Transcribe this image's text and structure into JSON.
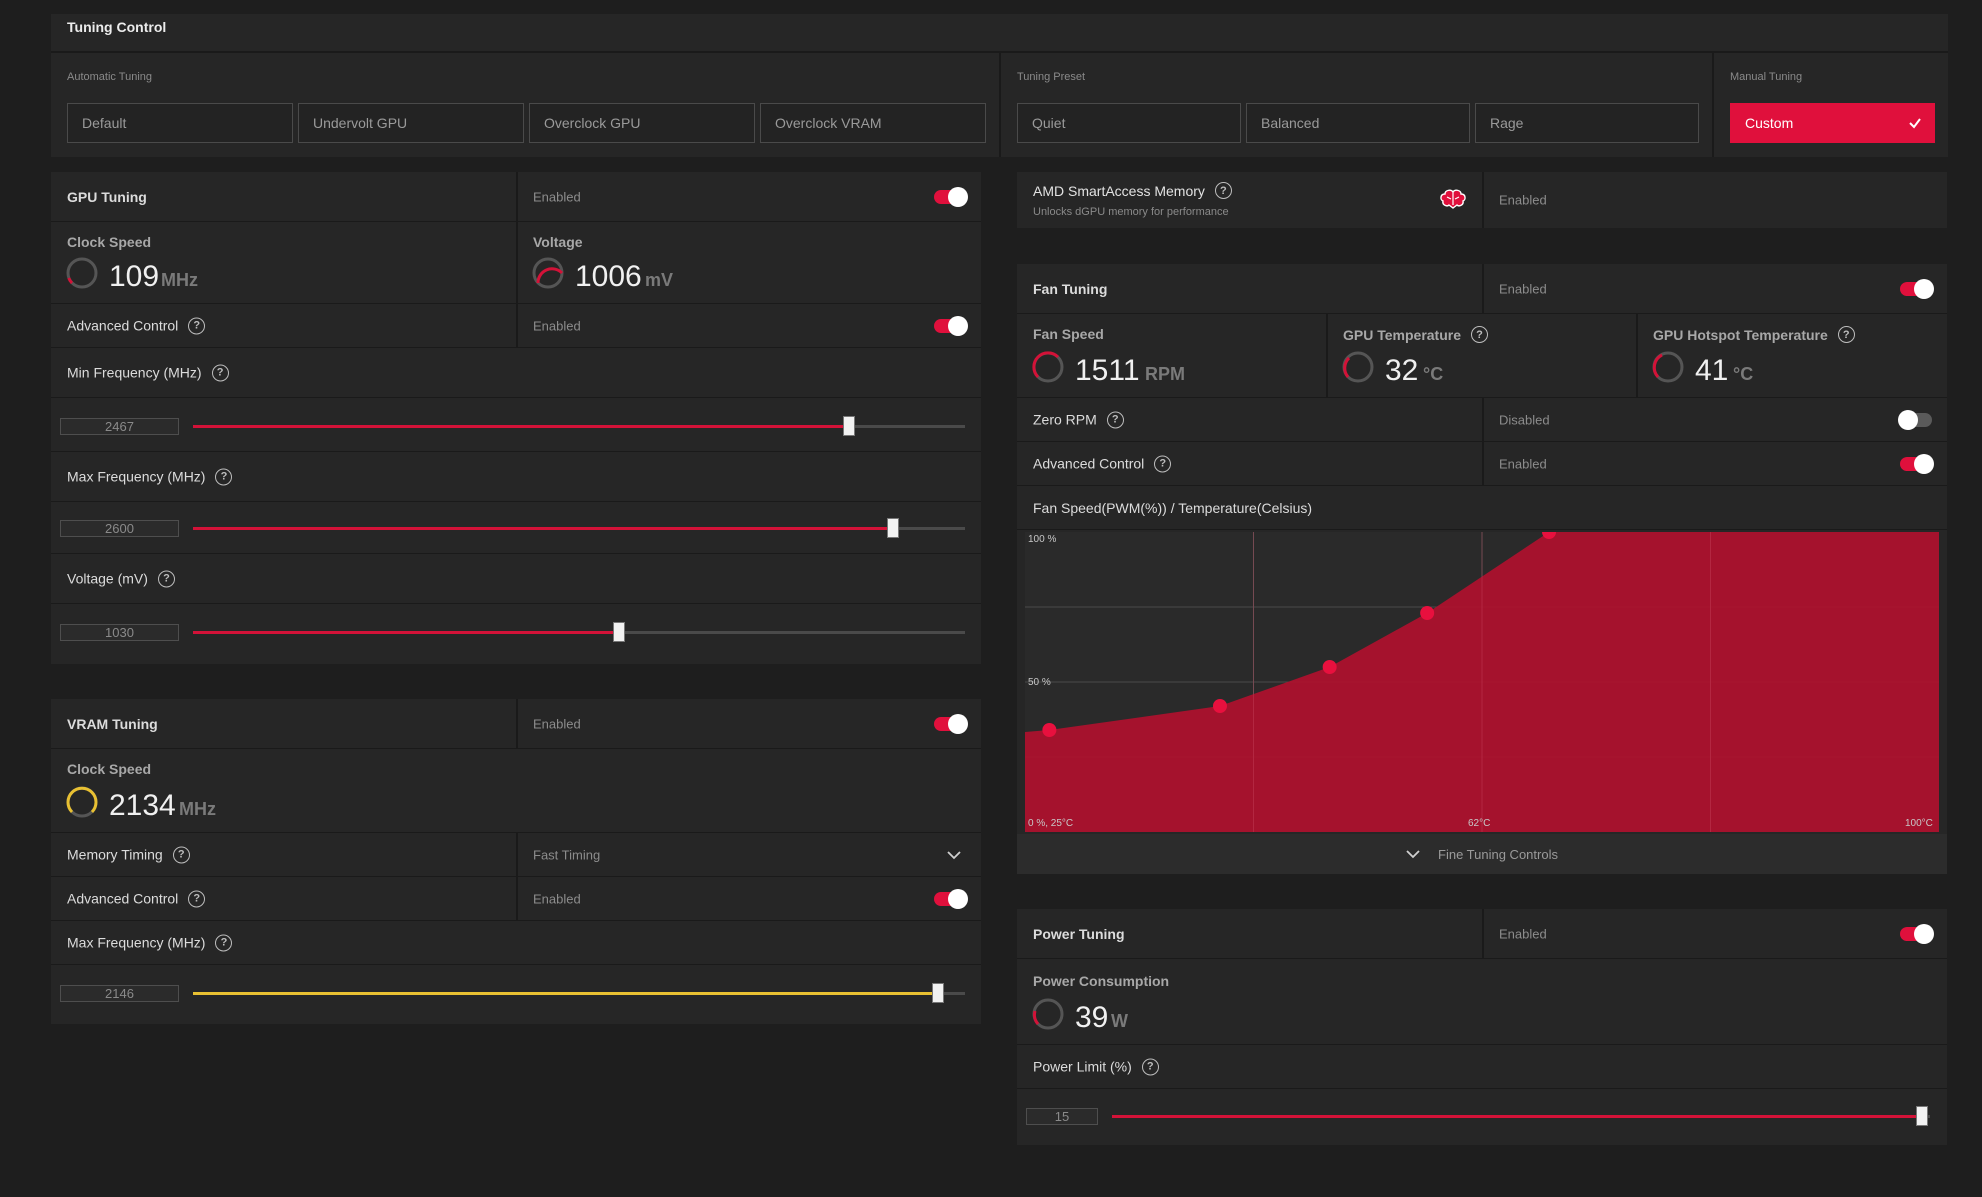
{
  "tuning_control": {
    "title": "Tuning Control",
    "automatic": {
      "label": "Automatic Tuning",
      "buttons": [
        "Default",
        "Undervolt GPU",
        "Overclock GPU",
        "Overclock VRAM"
      ]
    },
    "preset": {
      "label": "Tuning Preset",
      "buttons": [
        "Quiet",
        "Balanced",
        "Rage"
      ]
    },
    "manual": {
      "label": "Manual Tuning",
      "button": "Custom"
    }
  },
  "gpu_tuning": {
    "title": "GPU Tuning",
    "state": "Enabled",
    "enabled": true,
    "clock": {
      "label": "Clock Speed",
      "value": "109",
      "unit": "MHz"
    },
    "voltage": {
      "label": "Voltage",
      "value": "1006",
      "unit": "mV"
    },
    "advanced": {
      "label": "Advanced Control",
      "state": "Enabled",
      "enabled": true
    },
    "min_freq": {
      "label": "Min Frequency (MHz)",
      "value": "2467",
      "fraction": 0.85
    },
    "max_freq": {
      "label": "Max Frequency (MHz)",
      "value": "2600",
      "fraction": 0.907
    },
    "volt_slider": {
      "label": "Voltage (mV)",
      "value": "1030",
      "fraction": 0.552
    }
  },
  "vram_tuning": {
    "title": "VRAM Tuning",
    "state": "Enabled",
    "enabled": true,
    "clock": {
      "label": "Clock Speed",
      "value": "2134",
      "unit": "MHz"
    },
    "memory_timing": {
      "label": "Memory Timing",
      "value": "Fast Timing"
    },
    "advanced": {
      "label": "Advanced Control",
      "state": "Enabled",
      "enabled": true
    },
    "max_freq": {
      "label": "Max Frequency (MHz)",
      "value": "2146",
      "fraction": 0.965
    }
  },
  "smart_access": {
    "title": "AMD SmartAccess Memory",
    "subtitle": "Unlocks dGPU memory for performance",
    "state": "Enabled"
  },
  "fan_tuning": {
    "title": "Fan Tuning",
    "state": "Enabled",
    "enabled": true,
    "fan_speed": {
      "label": "Fan Speed",
      "value": "1511",
      "unit": "RPM"
    },
    "gpu_temp": {
      "label": "GPU Temperature",
      "value": "32",
      "unit": "°C"
    },
    "hotspot_temp": {
      "label": "GPU Hotspot Temperature",
      "value": "41",
      "unit": "°C"
    },
    "zero_rpm": {
      "label": "Zero RPM",
      "state": "Disabled",
      "enabled": false
    },
    "advanced": {
      "label": "Advanced Control",
      "state": "Enabled",
      "enabled": true
    },
    "curve_title": "Fan Speed(PWM(%)) / Temperature(Celsius)",
    "fine_tuning": "Fine Tuning Controls"
  },
  "power_tuning": {
    "title": "Power Tuning",
    "state": "Enabled",
    "enabled": true,
    "consumption": {
      "label": "Power Consumption",
      "value": "39",
      "unit": "W"
    },
    "limit": {
      "label": "Power Limit (%)",
      "value": "15",
      "fraction": 0.99
    }
  },
  "colors": {
    "accent": "#e0103c",
    "vram_accent": "#e8c032",
    "panel": "#262626",
    "background": "#1e1e1e"
  },
  "chart_data": {
    "type": "area",
    "title": "Fan Speed(PWM(%)) / Temperature(Celsius)",
    "xlim": [
      25,
      100
    ],
    "ylim": [
      0,
      100
    ],
    "x": [
      27,
      41,
      50,
      58,
      68
    ],
    "y": [
      34,
      42,
      55,
      73,
      100
    ],
    "y_tick_labels": [
      "100 %",
      "50 %"
    ],
    "x_tick_labels": [
      "0 %, 25°C",
      "62°C",
      "100°C"
    ],
    "grid": true
  }
}
